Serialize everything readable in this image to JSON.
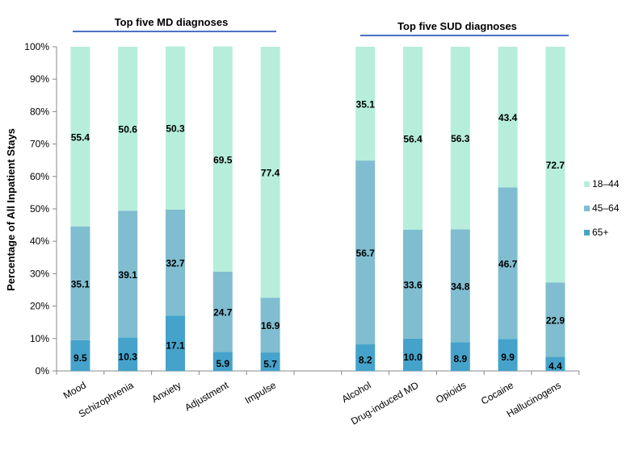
{
  "chart_data": {
    "type": "bar",
    "stacked": "percent",
    "ylabel": "Percentage of All Inpatient Stays",
    "ylim": [
      0,
      100
    ],
    "yticks": [
      "0%",
      "10%",
      "20%",
      "30%",
      "40%",
      "50%",
      "60%",
      "70%",
      "80%",
      "90%",
      "100%"
    ],
    "groups": [
      {
        "title": "Top five MD diagnoses",
        "categories": [
          "Mood",
          "Schizophrenia",
          "Anxiety",
          "Adjustment",
          "Impulse"
        ]
      },
      {
        "title": "Top five SUD diagnoses",
        "categories": [
          "Alcohol",
          "Drug-induced MD",
          "Opioids",
          "Cocaine",
          "Hallucinogens"
        ]
      }
    ],
    "categories": [
      "Mood",
      "Schizophrenia",
      "Anxiety",
      "Adjustment",
      "Impulse",
      "Alcohol",
      "Drug-induced MD",
      "Opioids",
      "Cocaine",
      "Hallucinogens"
    ],
    "series": [
      {
        "name": "65+",
        "color": "#45a3cb",
        "values": [
          9.5,
          10.3,
          17.1,
          5.9,
          5.7,
          8.2,
          10.0,
          8.9,
          9.9,
          4.4
        ],
        "labels": [
          "9.5",
          "10.3",
          "17.1",
          "5.9",
          "5.7",
          "8.2",
          "10.0",
          "8.9",
          "9.9",
          "4.4"
        ]
      },
      {
        "name": "45–64",
        "color": "#80bdd0",
        "values": [
          35.1,
          39.1,
          32.7,
          24.7,
          16.9,
          56.7,
          33.6,
          34.8,
          46.7,
          22.9
        ],
        "labels": [
          "35.1",
          "39.1",
          "32.7",
          "24.7",
          "16.9",
          "56.7",
          "33.6",
          "34.8",
          "46.7",
          "22.9"
        ]
      },
      {
        "name": "18–44",
        "color": "#b6eedb",
        "values": [
          55.4,
          50.6,
          50.3,
          69.5,
          77.4,
          35.1,
          56.4,
          56.3,
          43.4,
          72.7
        ],
        "labels": [
          "55.4",
          "50.6",
          "50.3",
          "69.5",
          "77.4",
          "35.1",
          "56.4",
          "56.3",
          "43.4",
          "72.7"
        ]
      }
    ],
    "legend": [
      "18–44",
      "45–64",
      "65+"
    ],
    "legend_position": "right",
    "grid": false
  }
}
